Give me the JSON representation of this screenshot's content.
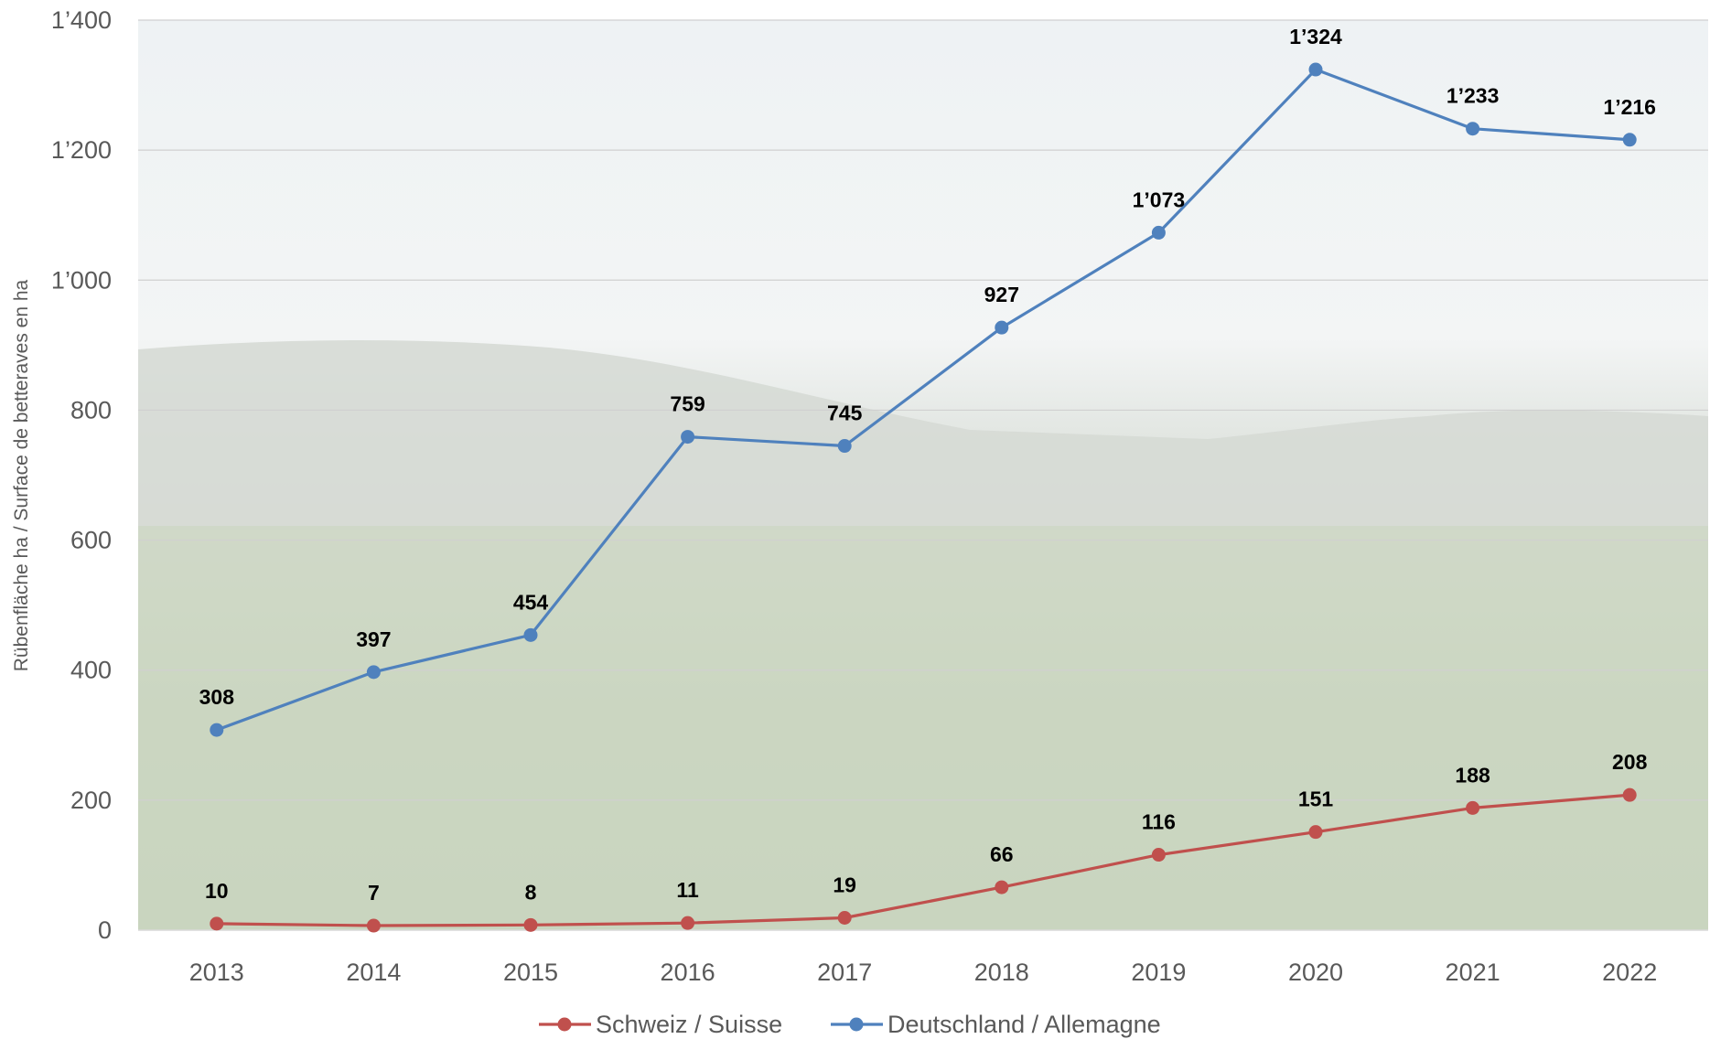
{
  "chart_data": {
    "type": "line",
    "title": "",
    "xlabel": "",
    "ylabel": "Rübenfläche ha / Surface de betteraves en ha",
    "ylim": [
      0,
      1400
    ],
    "yticks": [
      "0",
      "200",
      "400",
      "600",
      "800",
      "1’000",
      "1’200",
      "1’400"
    ],
    "ytick_values": [
      0,
      200,
      400,
      600,
      800,
      1000,
      1200,
      1400
    ],
    "categories": [
      "2013",
      "2014",
      "2015",
      "2016",
      "2017",
      "2018",
      "2019",
      "2020",
      "2021",
      "2022"
    ],
    "grid": true,
    "legend_position": "bottom",
    "series": [
      {
        "name": "Schweiz / Suisse",
        "color": "#c0504d",
        "values": [
          10,
          7,
          8,
          11,
          19,
          66,
          116,
          151,
          188,
          208
        ],
        "labels": [
          "10",
          "7",
          "8",
          "11",
          "19",
          "66",
          "116",
          "151",
          "188",
          "208"
        ]
      },
      {
        "name": "Deutschland / Allemagne",
        "color": "#4f81bd",
        "values": [
          308,
          397,
          454,
          759,
          745,
          927,
          1073,
          1324,
          1233,
          1216
        ],
        "labels": [
          "308",
          "397",
          "454",
          "759",
          "745",
          "927",
          "1’073",
          "1’324",
          "1’233",
          "1’216"
        ]
      }
    ]
  }
}
